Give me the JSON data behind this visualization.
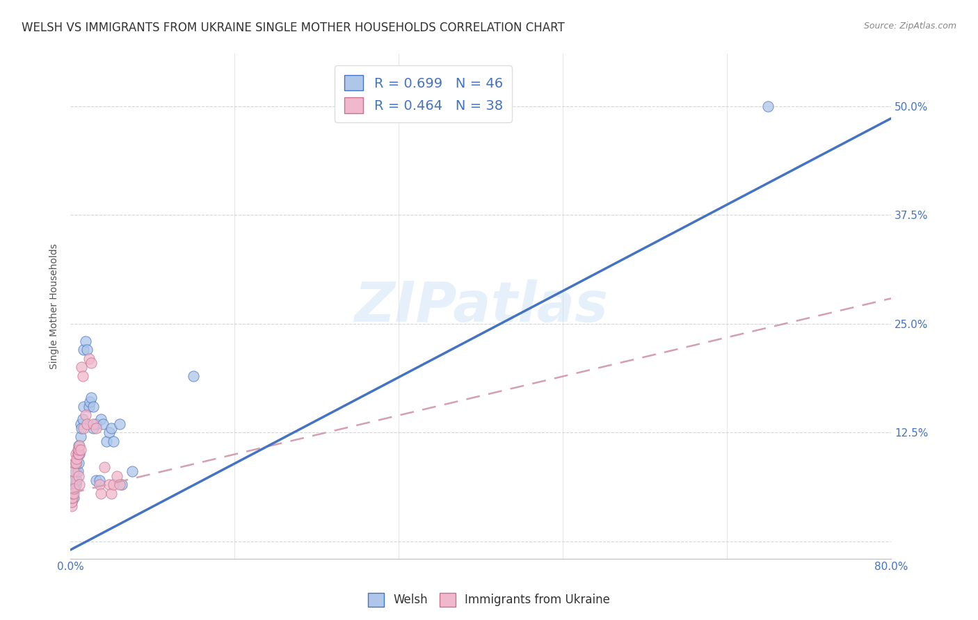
{
  "title": "WELSH VS IMMIGRANTS FROM UKRAINE SINGLE MOTHER HOUSEHOLDS CORRELATION CHART",
  "source": "Source: ZipAtlas.com",
  "ylabel": "Single Mother Households",
  "x_ticks": [
    0.0,
    0.16,
    0.32,
    0.48,
    0.64,
    0.8
  ],
  "x_tick_labels": [
    "0.0%",
    "",
    "",
    "",
    "",
    "80.0%"
  ],
  "y_ticks": [
    0.0,
    0.125,
    0.25,
    0.375,
    0.5
  ],
  "y_tick_labels": [
    "",
    "12.5%",
    "25.0%",
    "37.5%",
    "50.0%"
  ],
  "xlim": [
    0.0,
    0.8
  ],
  "ylim": [
    -0.02,
    0.56
  ],
  "welsh_color": "#aec6e8",
  "ukraine_color": "#f0b8cc",
  "welsh_line_color": "#4472c4",
  "ukraine_line_color": "#d4a0b0",
  "welsh_R": 0.699,
  "welsh_N": 46,
  "ukraine_R": 0.464,
  "ukraine_N": 38,
  "watermark_text": "ZIPatlas",
  "grid_color": "#cccccc",
  "background_color": "#ffffff",
  "title_fontsize": 12,
  "axis_label_fontsize": 10,
  "tick_fontsize": 11,
  "tick_color": "#4472c4",
  "welsh_line_slope": 0.62,
  "welsh_line_intercept": -0.01,
  "ukraine_line_slope": 0.28,
  "ukraine_line_intercept": 0.055,
  "welsh_scatter": [
    [
      0.001,
      0.045
    ],
    [
      0.001,
      0.05
    ],
    [
      0.002,
      0.055
    ],
    [
      0.002,
      0.06
    ],
    [
      0.003,
      0.05
    ],
    [
      0.003,
      0.06
    ],
    [
      0.003,
      0.07
    ],
    [
      0.004,
      0.06
    ],
    [
      0.004,
      0.07
    ],
    [
      0.005,
      0.065
    ],
    [
      0.005,
      0.08
    ],
    [
      0.005,
      0.09
    ],
    [
      0.006,
      0.07
    ],
    [
      0.006,
      0.09
    ],
    [
      0.007,
      0.08
    ],
    [
      0.007,
      0.1
    ],
    [
      0.008,
      0.09
    ],
    [
      0.008,
      0.11
    ],
    [
      0.009,
      0.1
    ],
    [
      0.01,
      0.12
    ],
    [
      0.01,
      0.135
    ],
    [
      0.011,
      0.13
    ],
    [
      0.012,
      0.14
    ],
    [
      0.013,
      0.155
    ],
    [
      0.013,
      0.22
    ],
    [
      0.015,
      0.23
    ],
    [
      0.016,
      0.22
    ],
    [
      0.018,
      0.155
    ],
    [
      0.019,
      0.16
    ],
    [
      0.02,
      0.165
    ],
    [
      0.022,
      0.155
    ],
    [
      0.022,
      0.13
    ],
    [
      0.025,
      0.07
    ],
    [
      0.025,
      0.135
    ],
    [
      0.028,
      0.07
    ],
    [
      0.03,
      0.14
    ],
    [
      0.032,
      0.135
    ],
    [
      0.035,
      0.115
    ],
    [
      0.038,
      0.125
    ],
    [
      0.04,
      0.13
    ],
    [
      0.042,
      0.115
    ],
    [
      0.048,
      0.135
    ],
    [
      0.05,
      0.065
    ],
    [
      0.06,
      0.08
    ],
    [
      0.12,
      0.19
    ],
    [
      0.68,
      0.5
    ]
  ],
  "ukraine_scatter": [
    [
      0.001,
      0.04
    ],
    [
      0.001,
      0.045
    ],
    [
      0.001,
      0.05
    ],
    [
      0.002,
      0.05
    ],
    [
      0.002,
      0.055
    ],
    [
      0.002,
      0.07
    ],
    [
      0.003,
      0.055
    ],
    [
      0.003,
      0.06
    ],
    [
      0.003,
      0.08
    ],
    [
      0.004,
      0.09
    ],
    [
      0.005,
      0.09
    ],
    [
      0.005,
      0.1
    ],
    [
      0.006,
      0.095
    ],
    [
      0.007,
      0.1
    ],
    [
      0.007,
      0.105
    ],
    [
      0.008,
      0.1
    ],
    [
      0.008,
      0.105
    ],
    [
      0.009,
      0.11
    ],
    [
      0.01,
      0.105
    ],
    [
      0.011,
      0.2
    ],
    [
      0.012,
      0.19
    ],
    [
      0.013,
      0.13
    ],
    [
      0.015,
      0.145
    ],
    [
      0.016,
      0.135
    ],
    [
      0.018,
      0.21
    ],
    [
      0.02,
      0.205
    ],
    [
      0.022,
      0.135
    ],
    [
      0.025,
      0.13
    ],
    [
      0.028,
      0.065
    ],
    [
      0.03,
      0.055
    ],
    [
      0.033,
      0.085
    ],
    [
      0.038,
      0.065
    ],
    [
      0.04,
      0.055
    ],
    [
      0.042,
      0.065
    ],
    [
      0.045,
      0.075
    ],
    [
      0.048,
      0.065
    ],
    [
      0.008,
      0.075
    ],
    [
      0.009,
      0.065
    ]
  ]
}
